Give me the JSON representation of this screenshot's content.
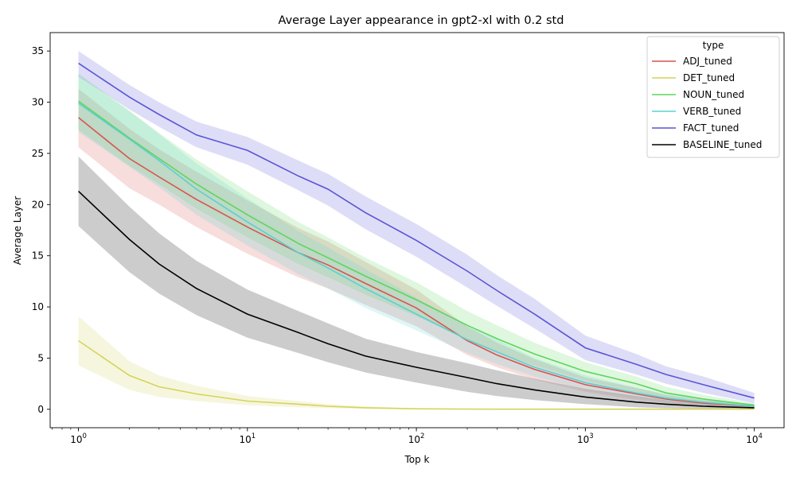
{
  "chart_data": {
    "type": "line",
    "title": "Average Layer appearance in gpt2-xl with 0.2 std",
    "xlabel": "Top k",
    "ylabel": "Average Layer",
    "xscale": "log",
    "xlim": [
      0.68,
      15000
    ],
    "ylim": [
      -1.8,
      36.8
    ],
    "yticks": [
      0,
      5,
      10,
      15,
      20,
      25,
      30,
      35
    ],
    "xticks": [
      {
        "value": 1,
        "base": "10",
        "exp": "0"
      },
      {
        "value": 10,
        "base": "10",
        "exp": "1"
      },
      {
        "value": 100,
        "base": "10",
        "exp": "2"
      },
      {
        "value": 1000,
        "base": "10",
        "exp": "3"
      },
      {
        "value": 10000,
        "base": "10",
        "exp": "4"
      }
    ],
    "grid": false,
    "legend": {
      "title": "type",
      "placement": "top-right"
    },
    "x": [
      1,
      2,
      3,
      5,
      10,
      20,
      30,
      50,
      100,
      200,
      300,
      500,
      1000,
      2000,
      3000,
      5000,
      10000
    ],
    "series": [
      {
        "name": "ADJ_tuned",
        "color": "#d9534f",
        "mean": [
          28.5,
          24.5,
          22.7,
          20.5,
          17.8,
          15.3,
          14.1,
          12.3,
          9.9,
          6.7,
          5.3,
          3.9,
          2.4,
          1.5,
          1.0,
          0.6,
          0.3
        ],
        "lower": [
          25.6,
          21.6,
          20.0,
          17.8,
          15.2,
          12.9,
          11.8,
          10.2,
          8.1,
          5.3,
          4.1,
          2.9,
          1.7,
          0.9,
          0.6,
          0.3,
          0.1
        ],
        "upper": [
          31.3,
          27.4,
          25.4,
          23.2,
          20.4,
          17.7,
          16.4,
          14.4,
          11.7,
          8.1,
          6.5,
          4.9,
          3.1,
          2.1,
          1.4,
          0.9,
          0.5
        ]
      },
      {
        "name": "DET_tuned",
        "color": "#d4d45a",
        "mean": [
          6.7,
          3.3,
          2.2,
          1.5,
          0.8,
          0.5,
          0.3,
          0.15,
          0.05,
          0.02,
          0.01,
          0.01,
          0.01,
          0.01,
          0.01,
          0.01,
          0.01
        ],
        "lower": [
          4.3,
          1.9,
          1.2,
          0.8,
          0.4,
          0.2,
          0.1,
          0.05,
          0.0,
          0.0,
          0.0,
          0.0,
          0.0,
          0.0,
          0.0,
          0.0,
          0.0
        ],
        "upper": [
          9.1,
          4.7,
          3.3,
          2.3,
          1.3,
          0.8,
          0.5,
          0.3,
          0.1,
          0.05,
          0.03,
          0.03,
          0.03,
          0.03,
          0.03,
          0.03,
          0.03
        ]
      },
      {
        "name": "NOUN_tuned",
        "color": "#5cd65c",
        "mean": [
          30.1,
          26.5,
          24.5,
          22.0,
          19.0,
          16.2,
          14.8,
          13.0,
          10.7,
          8.2,
          6.9,
          5.4,
          3.7,
          2.5,
          1.6,
          1.0,
          0.4
        ],
        "lower": [
          27.3,
          23.8,
          22.0,
          19.6,
          16.8,
          14.2,
          12.9,
          11.2,
          9.1,
          6.8,
          5.6,
          4.3,
          2.8,
          1.7,
          1.1,
          0.6,
          0.2
        ],
        "upper": [
          32.8,
          29.2,
          27.0,
          24.4,
          21.3,
          18.3,
          16.8,
          14.8,
          12.4,
          9.6,
          8.2,
          6.5,
          4.6,
          3.2,
          2.2,
          1.4,
          0.6
        ]
      },
      {
        "name": "VERB_tuned",
        "color": "#5bd0d0",
        "mean": [
          29.9,
          26.4,
          24.3,
          21.5,
          18.3,
          15.3,
          13.8,
          11.8,
          9.3,
          6.8,
          5.6,
          4.1,
          2.6,
          1.6,
          1.1,
          0.7,
          0.3
        ],
        "lower": [
          27.1,
          23.7,
          21.7,
          19.0,
          16.0,
          13.2,
          11.8,
          9.9,
          7.7,
          5.5,
          4.4,
          3.2,
          1.9,
          1.1,
          0.7,
          0.4,
          0.1
        ],
        "upper": [
          32.6,
          29.1,
          26.9,
          24.0,
          20.6,
          17.4,
          15.8,
          13.7,
          10.9,
          8.1,
          6.8,
          5.0,
          3.3,
          2.1,
          1.5,
          1.0,
          0.5
        ]
      },
      {
        "name": "FACT_tuned",
        "color": "#5a55d6",
        "mean": [
          33.8,
          30.5,
          28.8,
          26.8,
          25.3,
          22.8,
          21.5,
          19.2,
          16.5,
          13.5,
          11.6,
          9.3,
          6.0,
          4.4,
          3.4,
          2.4,
          1.1
        ],
        "lower": [
          32.5,
          29.3,
          27.6,
          25.6,
          23.9,
          21.4,
          19.9,
          17.6,
          14.9,
          11.9,
          10.1,
          7.9,
          4.8,
          3.4,
          2.5,
          1.6,
          0.6
        ],
        "upper": [
          35.0,
          31.7,
          30.0,
          28.1,
          26.6,
          24.3,
          23.0,
          20.8,
          18.1,
          15.1,
          13.1,
          10.8,
          7.2,
          5.4,
          4.2,
          3.2,
          1.6
        ]
      },
      {
        "name": "BASELINE_tuned",
        "color": "#000000",
        "band_color": "#999999",
        "mean": [
          21.3,
          16.6,
          14.2,
          11.8,
          9.3,
          7.5,
          6.4,
          5.2,
          4.1,
          3.1,
          2.5,
          1.9,
          1.2,
          0.7,
          0.5,
          0.3,
          0.15
        ],
        "lower": [
          17.9,
          13.4,
          11.3,
          9.2,
          7.0,
          5.5,
          4.6,
          3.6,
          2.6,
          1.7,
          1.3,
          0.9,
          0.5,
          0.2,
          0.1,
          0.05,
          0.02
        ],
        "upper": [
          24.7,
          19.8,
          17.2,
          14.5,
          11.7,
          9.6,
          8.4,
          6.9,
          5.6,
          4.5,
          3.8,
          3.0,
          2.0,
          1.3,
          0.9,
          0.6,
          0.3
        ]
      }
    ]
  }
}
